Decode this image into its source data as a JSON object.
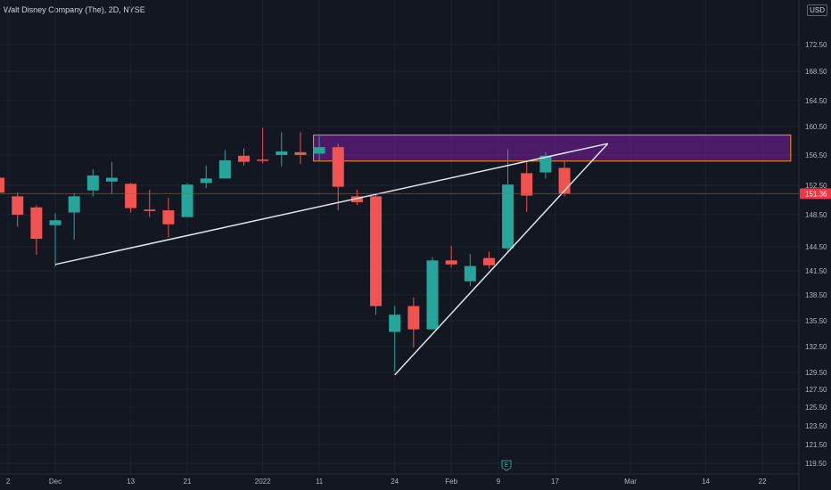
{
  "header": {
    "symbol_title": "Walt Disney Company (The), 2D, NYSE",
    "currency": "USD"
  },
  "last_price": {
    "value": 151.36,
    "label": "151.36",
    "color": "#f23645"
  },
  "events_marker": {
    "label": "E",
    "color": "#26a69a"
  },
  "colors": {
    "background": "#131722",
    "up": "#26a69a",
    "down": "#f05350",
    "grid": "#1e222d",
    "zone_fill": "#7b1fa2",
    "zone_border": "#ff9800",
    "trendline": "#e0e3eb"
  },
  "chart_data": {
    "type": "candlestick",
    "title": "Walt Disney Company (The), 2D, NYSE",
    "ylim": [
      118.5,
      175.5
    ],
    "y_ticks": [
      "172.50",
      "168.50",
      "164.50",
      "160.50",
      "156.50",
      "152.50",
      "148.50",
      "144.50",
      "141.50",
      "138.50",
      "135.50",
      "132.50",
      "129.50",
      "127.50",
      "125.50",
      "123.50",
      "121.50",
      "119.50"
    ],
    "x_ticks": [
      {
        "label": "2",
        "x": -0.5
      },
      {
        "label": "Dec",
        "x": 2
      },
      {
        "label": "13",
        "x": 6
      },
      {
        "label": "21",
        "x": 9
      },
      {
        "label": "2022",
        "x": 13
      },
      {
        "label": "11",
        "x": 16
      },
      {
        "label": "24",
        "x": 20
      },
      {
        "label": "Feb",
        "x": 23
      },
      {
        "label": "9",
        "x": 25.5
      },
      {
        "label": "17",
        "x": 28.5
      },
      {
        "label": "Mar",
        "x": 32.5
      },
      {
        "label": "14",
        "x": 36.5
      },
      {
        "label": "22",
        "x": 39.5
      }
    ],
    "candles": [
      {
        "x": -1,
        "o": 153.5,
        "h": 154.5,
        "l": 150.0,
        "c": 151.5
      },
      {
        "x": 0,
        "o": 151.0,
        "h": 151.5,
        "l": 147.0,
        "c": 148.5
      },
      {
        "x": 1,
        "o": 149.5,
        "h": 149.8,
        "l": 143.5,
        "c": 145.5
      },
      {
        "x": 2,
        "o": 147.2,
        "h": 148.7,
        "l": 142.0,
        "c": 147.8
      },
      {
        "x": 3,
        "o": 148.8,
        "h": 151.4,
        "l": 145.4,
        "c": 151.0
      },
      {
        "x": 4,
        "o": 151.8,
        "h": 154.6,
        "l": 151.0,
        "c": 153.8
      },
      {
        "x": 5,
        "o": 153.0,
        "h": 155.6,
        "l": 151.3,
        "c": 153.5
      },
      {
        "x": 6,
        "o": 152.7,
        "h": 152.8,
        "l": 148.8,
        "c": 149.4
      },
      {
        "x": 7,
        "o": 149.2,
        "h": 151.9,
        "l": 148.2,
        "c": 149.0
      },
      {
        "x": 8,
        "o": 149.1,
        "h": 150.8,
        "l": 145.7,
        "c": 147.3
      },
      {
        "x": 9,
        "o": 148.2,
        "h": 152.8,
        "l": 148.2,
        "c": 152.6
      },
      {
        "x": 10,
        "o": 152.8,
        "h": 155.1,
        "l": 152.1,
        "c": 153.4
      },
      {
        "x": 11,
        "o": 153.4,
        "h": 157.2,
        "l": 153.4,
        "c": 155.8
      },
      {
        "x": 12,
        "o": 156.4,
        "h": 157.4,
        "l": 155.1,
        "c": 155.6
      },
      {
        "x": 13,
        "o": 155.9,
        "h": 160.3,
        "l": 155.4,
        "c": 155.8
      },
      {
        "x": 14,
        "o": 156.5,
        "h": 159.7,
        "l": 155.0,
        "c": 157.0
      },
      {
        "x": 15,
        "o": 156.9,
        "h": 159.7,
        "l": 155.3,
        "c": 156.5
      },
      {
        "x": 16,
        "o": 156.7,
        "h": 159.1,
        "l": 155.7,
        "c": 157.6
      },
      {
        "x": 17,
        "o": 157.6,
        "h": 158.1,
        "l": 149.1,
        "c": 152.3
      },
      {
        "x": 18,
        "o": 151.0,
        "h": 151.9,
        "l": 149.8,
        "c": 150.2
      },
      {
        "x": 19,
        "o": 151.0,
        "h": 151.3,
        "l": 136.2,
        "c": 137.2
      },
      {
        "x": 20,
        "o": 134.2,
        "h": 137.2,
        "l": 129.6,
        "c": 136.2
      },
      {
        "x": 21,
        "o": 137.2,
        "h": 138.2,
        "l": 132.4,
        "c": 134.5
      },
      {
        "x": 22,
        "o": 134.5,
        "h": 143.2,
        "l": 134.5,
        "c": 142.8
      },
      {
        "x": 23,
        "o": 142.8,
        "h": 144.6,
        "l": 141.9,
        "c": 142.3
      },
      {
        "x": 24,
        "o": 140.2,
        "h": 143.6,
        "l": 139.6,
        "c": 142.1
      },
      {
        "x": 25,
        "o": 143.1,
        "h": 143.9,
        "l": 141.8,
        "c": 142.2
      },
      {
        "x": 26,
        "o": 144.3,
        "h": 157.3,
        "l": 144.0,
        "c": 152.6
      },
      {
        "x": 27,
        "o": 154.1,
        "h": 155.6,
        "l": 148.9,
        "c": 151.1
      },
      {
        "x": 28,
        "o": 154.2,
        "h": 156.9,
        "l": 153.4,
        "c": 156.4
      },
      {
        "x": 29,
        "o": 154.8,
        "h": 155.7,
        "l": 151.0,
        "c": 151.36
      }
    ],
    "zone": {
      "x_start": 16,
      "x_end": 41,
      "y_low": 155.7,
      "y_high": 159.3
    },
    "trendlines": [
      {
        "x1": 2,
        "y1": 142.3,
        "x2": 31.3,
        "y2": 158.1
      },
      {
        "x1": 20,
        "y1": 129.2,
        "x2": 31.3,
        "y2": 158.1
      }
    ]
  }
}
